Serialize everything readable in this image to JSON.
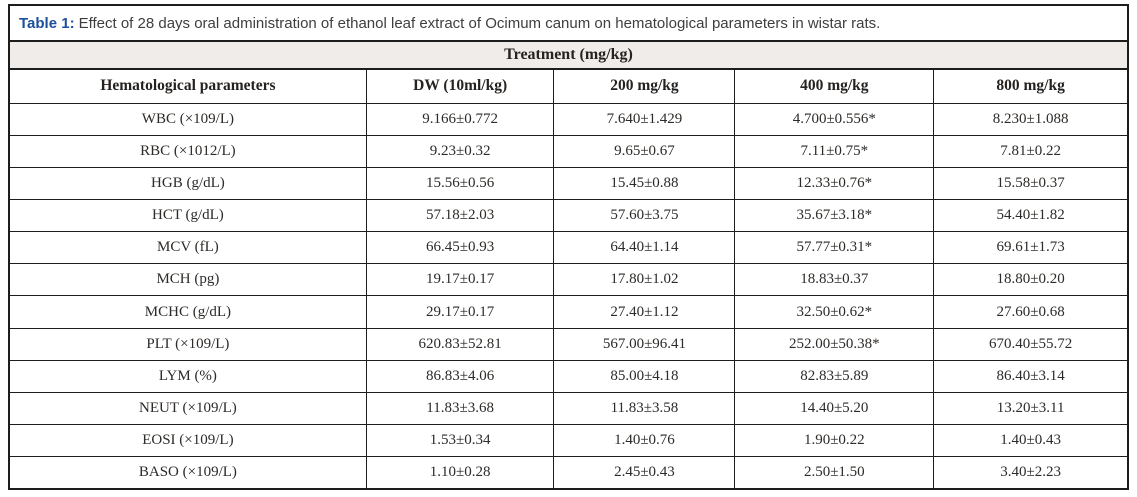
{
  "caption": {
    "label": "Table 1:",
    "text": "Effect of 28 days oral administration of ethanol leaf extract of Ocimum canum on hematological parameters in wistar rats."
  },
  "table": {
    "treatment_header": "Treatment (mg/kg)",
    "columns": [
      "Hematological parameters",
      "DW (10ml/kg)",
      "200 mg/kg",
      "400 mg/kg",
      "800 mg/kg"
    ],
    "rows": [
      {
        "parameter": "WBC (×109/L)",
        "values": [
          "9.166±0.772",
          "7.640±1.429",
          "4.700±0.556*",
          "8.230±1.088"
        ]
      },
      {
        "parameter": "RBC (×1012/L)",
        "values": [
          "9.23±0.32",
          "9.65±0.67",
          "7.11±0.75*",
          "7.81±0.22"
        ]
      },
      {
        "parameter": "HGB (g/dL)",
        "values": [
          "15.56±0.56",
          "15.45±0.88",
          "12.33±0.76*",
          "15.58±0.37"
        ]
      },
      {
        "parameter": "HCT (g/dL)",
        "values": [
          "57.18±2.03",
          "57.60±3.75",
          "35.67±3.18*",
          "54.40±1.82"
        ]
      },
      {
        "parameter": "MCV (fL)",
        "values": [
          "66.45±0.93",
          "64.40±1.14",
          "57.77±0.31*",
          "69.61±1.73"
        ]
      },
      {
        "parameter": "MCH (pg)",
        "values": [
          "19.17±0.17",
          "17.80±1.02",
          "18.83±0.37",
          "18.80±0.20"
        ]
      },
      {
        "parameter": "MCHC (g/dL)",
        "values": [
          "29.17±0.17",
          "27.40±1.12",
          "32.50±0.62*",
          "27.60±0.68"
        ]
      },
      {
        "parameter": "PLT (×109/L)",
        "values": [
          "620.83±52.81",
          "567.00±96.41",
          "252.00±50.38*",
          "670.40±55.72"
        ]
      },
      {
        "parameter": "LYM (%)",
        "values": [
          "86.83±4.06",
          "85.00±4.18",
          "82.83±5.89",
          "86.40±3.14"
        ]
      },
      {
        "parameter": "NEUT (×109/L)",
        "values": [
          "11.83±3.68",
          "11.83±3.58",
          "14.40±5.20",
          "13.20±3.11"
        ]
      },
      {
        "parameter": "EOSI (×109/L)",
        "values": [
          "1.53±0.34",
          "1.40±0.76",
          "1.90±0.22",
          "1.40±0.43"
        ]
      },
      {
        "parameter": "BASO (×109/L)",
        "values": [
          "1.10±0.28",
          "2.45±0.43",
          "2.50±1.50",
          "3.40±2.23"
        ]
      }
    ]
  },
  "colors": {
    "caption_label": "#1c4f9c",
    "caption_text": "#3e3e3e",
    "treatment_band_bg": "#efecea",
    "border": "#1d1d1d",
    "cell_text": "#2d2a27"
  }
}
